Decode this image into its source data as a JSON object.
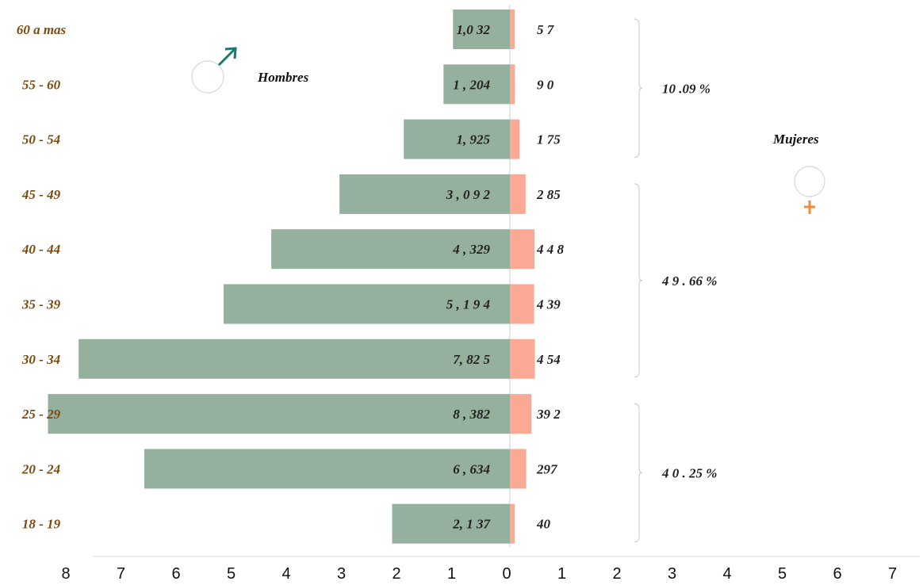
{
  "colors": {
    "male": "#95b09d",
    "female": "#f9a994",
    "age_label": "#7a4a10",
    "male_symbol": "#1a7a6e",
    "female_symbol": "#f28a3c"
  },
  "legend": {
    "male": "Hombres",
    "female": "Mujeres",
    "male_icon": "male-symbol-icon",
    "female_icon": "female-symbol-icon"
  },
  "chart_data": {
    "type": "bar",
    "orientation": "horizontal-population-pyramid",
    "categories": [
      "60 a mas",
      "55  - 60",
      "50  - 54",
      "45  - 49",
      "40  - 44",
      "35  - 39",
      "30  - 34",
      "25  - 29",
      "20  - 24",
      "18  - 19"
    ],
    "series": [
      {
        "name": "Hombres",
        "values": [
          1.032,
          1.204,
          1.925,
          3.092,
          4.329,
          5.194,
          7.825,
          8.382,
          6.634,
          2.137
        ],
        "labels": [
          "1,0   32",
          "1 , 204",
          "1,  925",
          "3 , 0 9  2",
          "4 , 329",
          "5 , 1 9  4",
          "7,  82   5",
          "8 , 382",
          "6 , 634",
          "2,  1 37"
        ]
      },
      {
        "name": "Mujeres",
        "values": [
          0.057,
          0.09,
          0.175,
          0.285,
          0.448,
          0.439,
          0.454,
          0.392,
          0.297,
          0.04
        ],
        "labels": [
          "5 7",
          "9 0",
          "1 75",
          "2 85",
          "4 4 8",
          "4 39",
          "4 54",
          "39  2",
          "297",
          "40"
        ]
      }
    ],
    "xticks": [
      "8",
      "7",
      "6",
      "5",
      "4",
      "3",
      "2",
      "1",
      "0",
      "1",
      "2",
      "3",
      "4",
      "5",
      "6",
      "7",
      "8"
    ],
    "xlim": [
      -8,
      8
    ],
    "group_percentages": [
      {
        "label": "10  .09    %",
        "from": 0,
        "to": 2
      },
      {
        "label": "4 9 . 66    %",
        "from": 3,
        "to": 6
      },
      {
        "label": "4 0 . 25    %",
        "from": 7,
        "to": 9
      }
    ],
    "legend": "none",
    "grid": false
  }
}
